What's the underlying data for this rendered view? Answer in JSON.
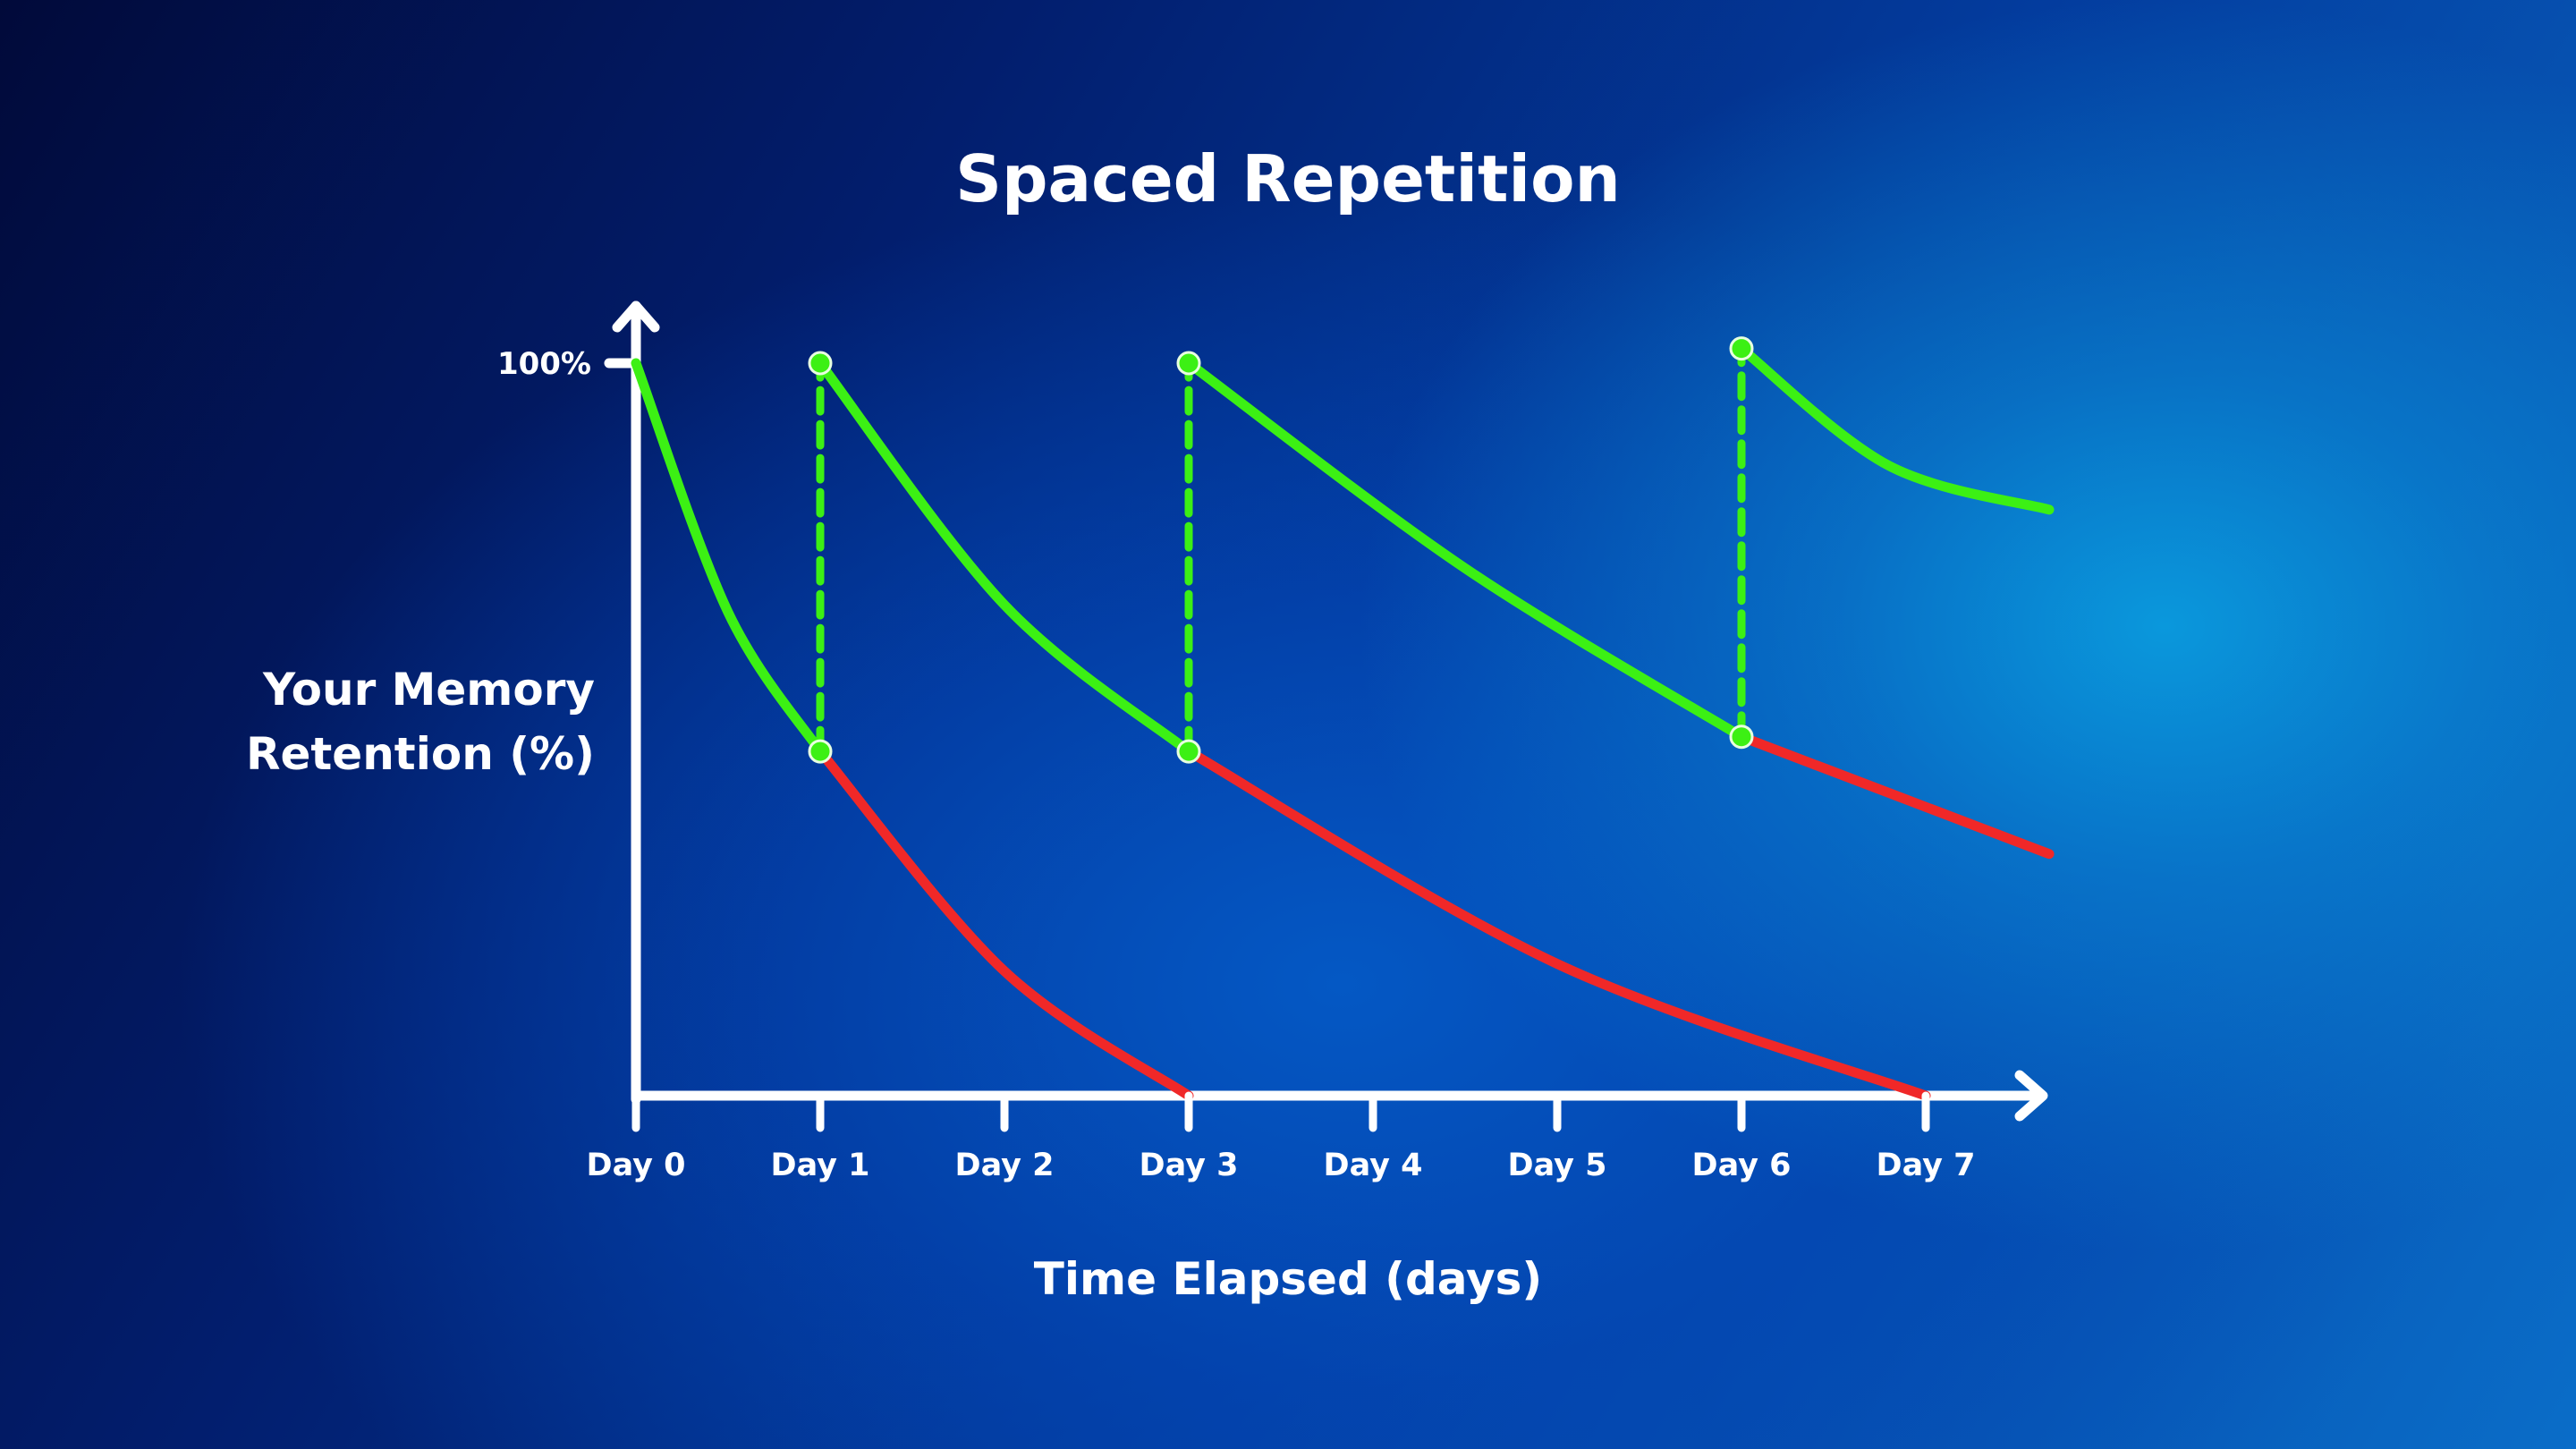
{
  "chart_data": {
    "type": "line",
    "title": "Spaced Repetition",
    "xlabel": "Time Elapsed (days)",
    "ylabel_lines": [
      "Your Memory",
      "Retention (%)"
    ],
    "y_tick_label": "100%",
    "x_tick_labels": [
      "Day 0",
      "Day 1",
      "Day 2",
      "Day 3",
      "Day 4",
      "Day 5",
      "Day 6",
      "Day 7"
    ],
    "xlim": [
      0,
      7.67
    ],
    "ylim": [
      0,
      100
    ],
    "colors": {
      "review": "#3cf014",
      "forgetting": "#f02828",
      "axis": "#ffffff"
    },
    "series": [
      {
        "name": "learning-curve-1",
        "kind": "review",
        "points": [
          [
            0,
            100
          ],
          [
            0.5,
            66
          ],
          [
            1,
            47
          ]
        ]
      },
      {
        "name": "forgetting-curve-1",
        "kind": "forgetting",
        "points": [
          [
            1,
            47
          ],
          [
            2,
            17
          ],
          [
            3,
            0
          ]
        ]
      },
      {
        "name": "learning-curve-2",
        "kind": "review",
        "points": [
          [
            1,
            100
          ],
          [
            2,
            67
          ],
          [
            3,
            47
          ]
        ]
      },
      {
        "name": "forgetting-curve-2",
        "kind": "forgetting",
        "points": [
          [
            3,
            47
          ],
          [
            5,
            18
          ],
          [
            7,
            0
          ]
        ]
      },
      {
        "name": "learning-curve-3",
        "kind": "review",
        "points": [
          [
            3,
            100
          ],
          [
            4.5,
            72
          ],
          [
            6,
            49
          ]
        ]
      },
      {
        "name": "forgetting-curve-3",
        "kind": "forgetting",
        "points": [
          [
            6,
            49
          ],
          [
            7.67,
            33
          ]
        ]
      },
      {
        "name": "learning-curve-4",
        "kind": "review",
        "points": [
          [
            6,
            102
          ],
          [
            6.8,
            86
          ],
          [
            7.67,
            80
          ]
        ]
      }
    ],
    "reviews": [
      {
        "day": 1,
        "from": 47,
        "to": 100
      },
      {
        "day": 3,
        "from": 47,
        "to": 100
      },
      {
        "day": 6,
        "from": 49,
        "to": 102
      }
    ]
  }
}
